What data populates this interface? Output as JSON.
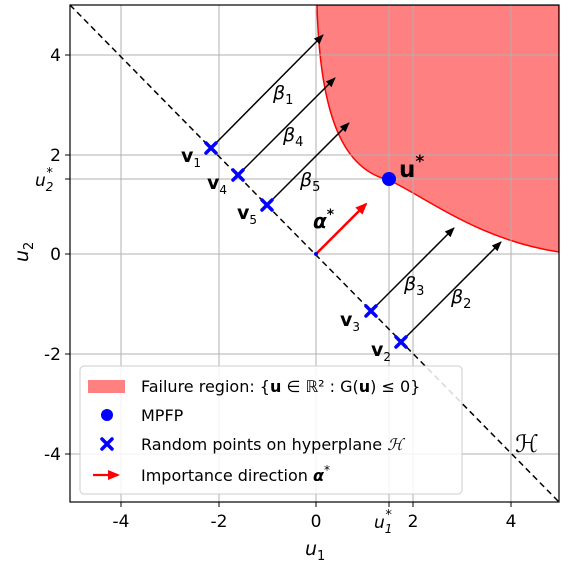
{
  "axes": {
    "xlabel": "u",
    "xlabel_sub": "1",
    "ylabel": "u",
    "ylabel_sub": "2",
    "xlim": [
      -5,
      5
    ],
    "ylim": [
      -5,
      5
    ],
    "x_ticks": [
      "-4",
      "-2",
      "0",
      "2",
      "4"
    ],
    "y_ticks": [
      "4",
      "2",
      "0",
      "-2",
      "-4"
    ],
    "u1_star_label": "u",
    "u1_star_sub": "1",
    "u1_star_sup": "*",
    "u2_star_label": "u",
    "u2_star_sub": "2",
    "u2_star_sup": "*"
  },
  "annotations": {
    "mpfp_label": "u",
    "mpfp_sup": "*",
    "alpha_label": "α",
    "alpha_sup": "*",
    "hyperplane_label": "ℋ",
    "points": [
      {
        "name": "v",
        "sub": "1",
        "u1": -2.13,
        "u2": 2.13
      },
      {
        "name": "v",
        "sub": "4",
        "u1": -1.6,
        "u2": 1.6
      },
      {
        "name": "v",
        "sub": "5",
        "u1": -1.0,
        "u2": 1.0
      },
      {
        "name": "v",
        "sub": "3",
        "u1": 1.1,
        "u2": -1.15
      },
      {
        "name": "v",
        "sub": "2",
        "u1": 1.75,
        "u2": -1.8
      }
    ],
    "betas": [
      {
        "name": "β",
        "sub": "1"
      },
      {
        "name": "β",
        "sub": "4"
      },
      {
        "name": "β",
        "sub": "5"
      },
      {
        "name": "β",
        "sub": "3"
      },
      {
        "name": "β",
        "sub": "2"
      }
    ],
    "mpfp": {
      "u1": 1.5,
      "u2": 1.5
    }
  },
  "legend": {
    "failure": "Failure region: {",
    "failure_bold": "u",
    "failure_rest": " ∈ ℝ² : G(",
    "failure_bold2": "u",
    "failure_end": ") ≤ 0}",
    "mpfp": "MPFP",
    "random": "Random points on hyperplane ",
    "random_h": "ℋ",
    "importance": "Importance direction ",
    "importance_alpha": "α",
    "importance_sup": "*"
  },
  "colors": {
    "failure_fill": "#ff8080",
    "failure_edge": "#ff0000",
    "points": "#0000ff",
    "alpha_arrow": "#ff0000",
    "grid": "#b0b0b0"
  }
}
